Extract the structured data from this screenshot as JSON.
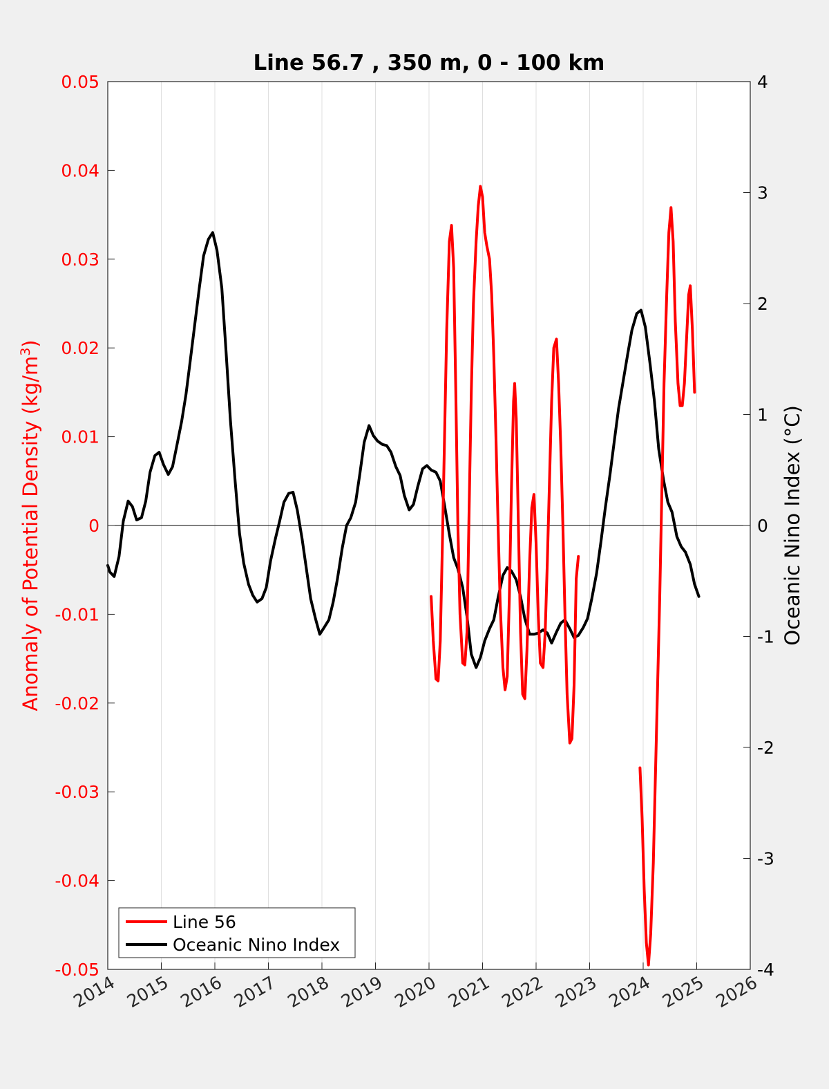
{
  "chart_data": {
    "type": "line",
    "title": "Line 56.7 , 350 m, 0 - 100 km",
    "xlabel": "",
    "ylabel": "Anomaly of Potential Density (kg/m",
    "ylabel_superscript": "3",
    "ylabel_suffix": ")",
    "y2label": "Oceanic Nino Index (°C)",
    "xlim": [
      2014,
      2026
    ],
    "ylim": [
      -0.05,
      0.05
    ],
    "y2lim": [
      -4,
      4
    ],
    "x_ticks": [
      2014,
      2015,
      2016,
      2017,
      2018,
      2019,
      2020,
      2021,
      2022,
      2023,
      2024,
      2025,
      2026
    ],
    "x_tick_labels": [
      "2014",
      "2015",
      "2016",
      "2017",
      "2018",
      "2019",
      "2020",
      "2021",
      "2022",
      "2023",
      "2024",
      "2025",
      "2026"
    ],
    "y_ticks": [
      -0.05,
      -0.04,
      -0.03,
      -0.02,
      -0.01,
      0,
      0.01,
      0.02,
      0.03,
      0.04,
      0.05
    ],
    "y_tick_labels": [
      "-0.05",
      "-0.04",
      "-0.03",
      "-0.02",
      "-0.01",
      "0",
      "0.01",
      "0.02",
      "0.03",
      "0.04",
      "0.05"
    ],
    "y2_ticks": [
      -4,
      -3,
      -2,
      -1,
      0,
      1,
      2,
      3,
      4
    ],
    "y2_tick_labels": [
      "-4",
      "-3",
      "-2",
      "-1",
      "0",
      "1",
      "2",
      "3",
      "4"
    ],
    "grid": "vertical lines at x ticks",
    "zero_line": true,
    "legend_position": "bottom-left",
    "colors": {
      "line56": "#ff0000",
      "oni": "#000000",
      "axis_left": "#ff0000",
      "background": "#f0f0f0",
      "plot_bg": "#ffffff"
    },
    "series": [
      {
        "name": "Line 56",
        "axis": "left",
        "color": "#ff0000",
        "segments": [
          [
            [
              2020.04,
              -0.008
            ],
            [
              2020.08,
              -0.013
            ],
            [
              2020.13,
              -0.0173
            ],
            [
              2020.17,
              -0.0175
            ],
            [
              2020.21,
              -0.013
            ],
            [
              2020.25,
              -0.002
            ],
            [
              2020.29,
              0.01
            ],
            [
              2020.33,
              0.022
            ],
            [
              2020.38,
              0.032
            ],
            [
              2020.42,
              0.0338
            ],
            [
              2020.46,
              0.029
            ],
            [
              2020.5,
              0.015
            ],
            [
              2020.54,
              0.0
            ],
            [
              2020.58,
              -0.01
            ],
            [
              2020.63,
              -0.0155
            ],
            [
              2020.67,
              -0.0157
            ],
            [
              2020.71,
              -0.012
            ],
            [
              2020.75,
              0.002
            ],
            [
              2020.79,
              0.015
            ],
            [
              2020.83,
              0.025
            ],
            [
              2020.88,
              0.032
            ],
            [
              2020.92,
              0.036
            ],
            [
              2020.96,
              0.0382
            ],
            [
              2021.0,
              0.037
            ],
            [
              2021.04,
              0.033
            ],
            [
              2021.08,
              0.0315
            ],
            [
              2021.13,
              0.03
            ],
            [
              2021.17,
              0.026
            ],
            [
              2021.21,
              0.019
            ],
            [
              2021.25,
              0.01
            ],
            [
              2021.29,
              0.0
            ],
            [
              2021.33,
              -0.009
            ],
            [
              2021.38,
              -0.016
            ],
            [
              2021.42,
              -0.0185
            ],
            [
              2021.46,
              -0.017
            ],
            [
              2021.5,
              -0.008
            ],
            [
              2021.54,
              0.004
            ],
            [
              2021.58,
              0.014
            ],
            [
              2021.6,
              0.016
            ],
            [
              2021.63,
              0.012
            ],
            [
              2021.67,
              0.0
            ],
            [
              2021.71,
              -0.012
            ],
            [
              2021.75,
              -0.019
            ],
            [
              2021.79,
              -0.0195
            ],
            [
              2021.83,
              -0.014
            ],
            [
              2021.88,
              -0.004
            ],
            [
              2021.92,
              0.002
            ],
            [
              2021.96,
              0.0035
            ],
            [
              2022.0,
              -0.002
            ],
            [
              2022.04,
              -0.01
            ],
            [
              2022.08,
              -0.0155
            ],
            [
              2022.13,
              -0.016
            ],
            [
              2022.17,
              -0.012
            ],
            [
              2022.21,
              -0.004
            ],
            [
              2022.25,
              0.005
            ],
            [
              2022.29,
              0.014
            ],
            [
              2022.33,
              0.02
            ],
            [
              2022.38,
              0.021
            ],
            [
              2022.42,
              0.016
            ],
            [
              2022.46,
              0.009
            ],
            [
              2022.5,
              0.0
            ],
            [
              2022.54,
              -0.01
            ],
            [
              2022.58,
              -0.019
            ],
            [
              2022.63,
              -0.0245
            ],
            [
              2022.67,
              -0.024
            ],
            [
              2022.71,
              -0.018
            ],
            [
              2022.75,
              -0.006
            ],
            [
              2022.79,
              -0.0035
            ]
          ],
          [
            [
              2023.94,
              -0.0273
            ],
            [
              2023.98,
              -0.033
            ],
            [
              2024.02,
              -0.041
            ],
            [
              2024.06,
              -0.047
            ],
            [
              2024.1,
              -0.0495
            ],
            [
              2024.14,
              -0.046
            ],
            [
              2024.19,
              -0.038
            ],
            [
              2024.23,
              -0.028
            ],
            [
              2024.27,
              -0.018
            ],
            [
              2024.31,
              -0.008
            ],
            [
              2024.35,
              0.004
            ],
            [
              2024.39,
              0.016
            ],
            [
              2024.44,
              0.026
            ],
            [
              2024.48,
              0.033
            ],
            [
              2024.52,
              0.0358
            ],
            [
              2024.56,
              0.032
            ],
            [
              2024.6,
              0.023
            ],
            [
              2024.65,
              0.016
            ],
            [
              2024.69,
              0.0135
            ],
            [
              2024.73,
              0.0135
            ],
            [
              2024.77,
              0.016
            ],
            [
              2024.81,
              0.021
            ],
            [
              2024.85,
              0.026
            ],
            [
              2024.88,
              0.027
            ],
            [
              2024.92,
              0.022
            ],
            [
              2024.96,
              0.015
            ]
          ]
        ]
      },
      {
        "name": "Oceanic Nino Index",
        "axis": "right",
        "color": "#000000",
        "points": [
          [
            2014.0,
            -0.36
          ],
          [
            2014.04,
            -0.42
          ],
          [
            2014.12,
            -0.46
          ],
          [
            2014.21,
            -0.28
          ],
          [
            2014.29,
            0.04
          ],
          [
            2014.38,
            0.22
          ],
          [
            2014.46,
            0.17
          ],
          [
            2014.54,
            0.05
          ],
          [
            2014.63,
            0.07
          ],
          [
            2014.71,
            0.22
          ],
          [
            2014.79,
            0.48
          ],
          [
            2014.88,
            0.63
          ],
          [
            2014.96,
            0.66
          ],
          [
            2015.04,
            0.55
          ],
          [
            2015.13,
            0.46
          ],
          [
            2015.21,
            0.53
          ],
          [
            2015.29,
            0.72
          ],
          [
            2015.38,
            0.94
          ],
          [
            2015.46,
            1.18
          ],
          [
            2015.54,
            1.48
          ],
          [
            2015.63,
            1.83
          ],
          [
            2015.71,
            2.14
          ],
          [
            2015.79,
            2.43
          ],
          [
            2015.88,
            2.58
          ],
          [
            2015.96,
            2.64
          ],
          [
            2016.04,
            2.48
          ],
          [
            2016.13,
            2.14
          ],
          [
            2016.21,
            1.56
          ],
          [
            2016.29,
            0.95
          ],
          [
            2016.38,
            0.39
          ],
          [
            2016.46,
            -0.07
          ],
          [
            2016.54,
            -0.34
          ],
          [
            2016.63,
            -0.53
          ],
          [
            2016.71,
            -0.63
          ],
          [
            2016.79,
            -0.69
          ],
          [
            2016.88,
            -0.66
          ],
          [
            2016.96,
            -0.56
          ],
          [
            2017.04,
            -0.32
          ],
          [
            2017.13,
            -0.12
          ],
          [
            2017.21,
            0.04
          ],
          [
            2017.29,
            0.21
          ],
          [
            2017.38,
            0.29
          ],
          [
            2017.46,
            0.3
          ],
          [
            2017.54,
            0.14
          ],
          [
            2017.63,
            -0.12
          ],
          [
            2017.71,
            -0.39
          ],
          [
            2017.79,
            -0.66
          ],
          [
            2017.88,
            -0.84
          ],
          [
            2017.96,
            -0.98
          ],
          [
            2018.04,
            -0.92
          ],
          [
            2018.13,
            -0.85
          ],
          [
            2018.21,
            -0.69
          ],
          [
            2018.29,
            -0.48
          ],
          [
            2018.38,
            -0.2
          ],
          [
            2018.46,
            0.0
          ],
          [
            2018.54,
            0.07
          ],
          [
            2018.63,
            0.21
          ],
          [
            2018.71,
            0.47
          ],
          [
            2018.79,
            0.75
          ],
          [
            2018.88,
            0.9
          ],
          [
            2018.96,
            0.81
          ],
          [
            2019.04,
            0.76
          ],
          [
            2019.13,
            0.73
          ],
          [
            2019.21,
            0.72
          ],
          [
            2019.29,
            0.66
          ],
          [
            2019.38,
            0.53
          ],
          [
            2019.46,
            0.45
          ],
          [
            2019.54,
            0.27
          ],
          [
            2019.63,
            0.14
          ],
          [
            2019.71,
            0.19
          ],
          [
            2019.79,
            0.35
          ],
          [
            2019.88,
            0.51
          ],
          [
            2019.96,
            0.54
          ],
          [
            2020.04,
            0.5
          ],
          [
            2020.13,
            0.48
          ],
          [
            2020.21,
            0.4
          ],
          [
            2020.29,
            0.18
          ],
          [
            2020.38,
            -0.08
          ],
          [
            2020.46,
            -0.29
          ],
          [
            2020.54,
            -0.39
          ],
          [
            2020.63,
            -0.56
          ],
          [
            2020.71,
            -0.82
          ],
          [
            2020.79,
            -1.16
          ],
          [
            2020.88,
            -1.28
          ],
          [
            2020.96,
            -1.19
          ],
          [
            2021.04,
            -1.04
          ],
          [
            2021.13,
            -0.93
          ],
          [
            2021.21,
            -0.85
          ],
          [
            2021.29,
            -0.65
          ],
          [
            2021.38,
            -0.45
          ],
          [
            2021.46,
            -0.38
          ],
          [
            2021.54,
            -0.41
          ],
          [
            2021.63,
            -0.49
          ],
          [
            2021.71,
            -0.64
          ],
          [
            2021.79,
            -0.84
          ],
          [
            2021.88,
            -0.98
          ],
          [
            2021.96,
            -0.98
          ],
          [
            2022.04,
            -0.97
          ],
          [
            2022.13,
            -0.94
          ],
          [
            2022.21,
            -0.97
          ],
          [
            2022.29,
            -1.06
          ],
          [
            2022.38,
            -0.96
          ],
          [
            2022.46,
            -0.88
          ],
          [
            2022.54,
            -0.85
          ],
          [
            2022.63,
            -0.93
          ],
          [
            2022.71,
            -1.01
          ],
          [
            2022.79,
            -0.99
          ],
          [
            2022.88,
            -0.92
          ],
          [
            2022.96,
            -0.84
          ],
          [
            2023.04,
            -0.66
          ],
          [
            2023.13,
            -0.43
          ],
          [
            2023.21,
            -0.15
          ],
          [
            2023.29,
            0.15
          ],
          [
            2023.38,
            0.46
          ],
          [
            2023.46,
            0.76
          ],
          [
            2023.54,
            1.05
          ],
          [
            2023.63,
            1.31
          ],
          [
            2023.71,
            1.54
          ],
          [
            2023.79,
            1.76
          ],
          [
            2023.88,
            1.91
          ],
          [
            2023.96,
            1.94
          ],
          [
            2024.04,
            1.79
          ],
          [
            2024.13,
            1.45
          ],
          [
            2024.21,
            1.12
          ],
          [
            2024.29,
            0.69
          ],
          [
            2024.38,
            0.41
          ],
          [
            2024.46,
            0.21
          ],
          [
            2024.54,
            0.12
          ],
          [
            2024.63,
            -0.1
          ],
          [
            2024.71,
            -0.19
          ],
          [
            2024.79,
            -0.24
          ],
          [
            2024.88,
            -0.35
          ],
          [
            2024.96,
            -0.53
          ],
          [
            2025.04,
            -0.64
          ]
        ]
      }
    ]
  }
}
